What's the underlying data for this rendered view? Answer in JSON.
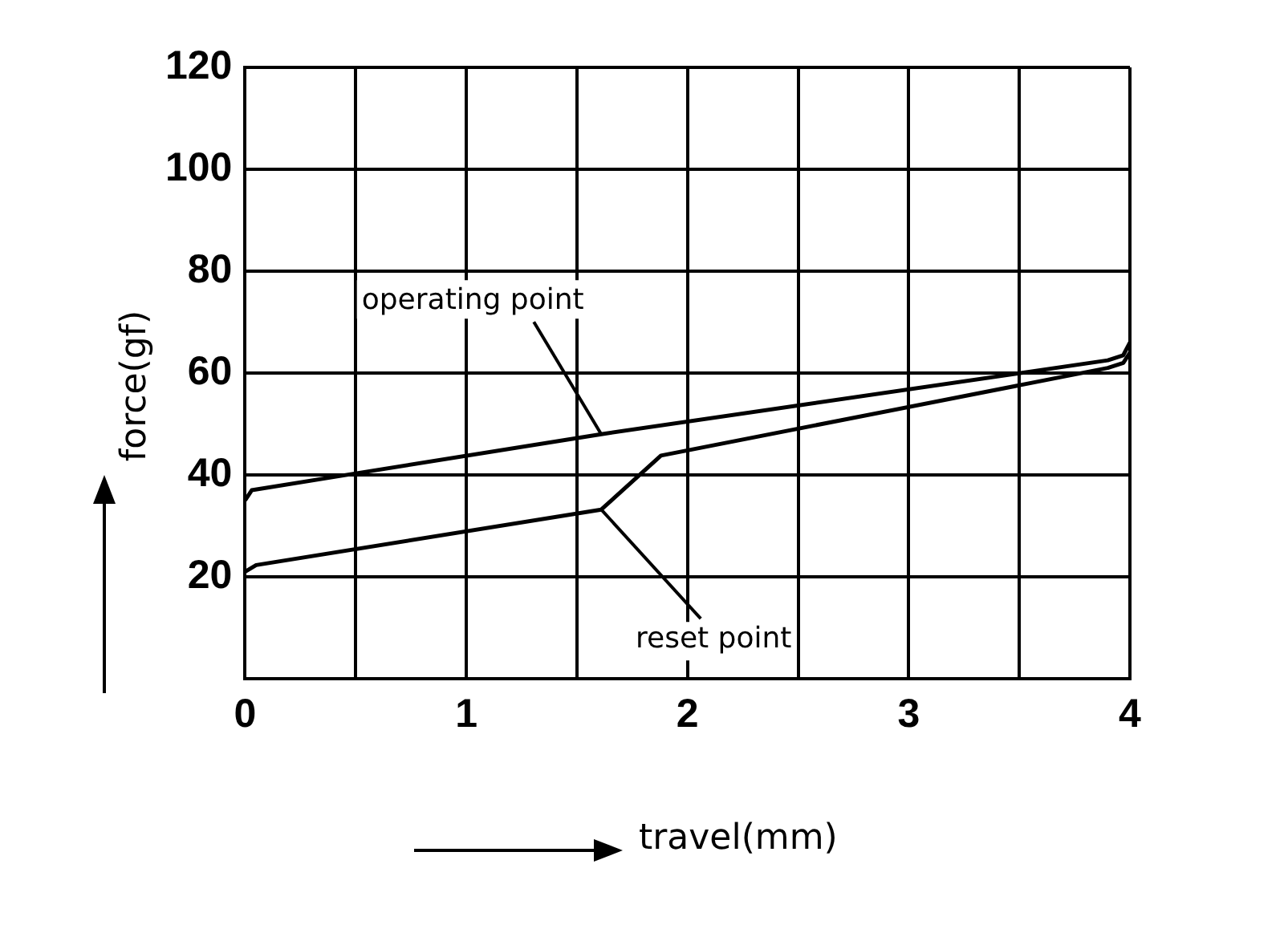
{
  "chart_data": {
    "type": "line",
    "xlabel": "travel(mm)",
    "ylabel": "force(gf)",
    "xlim": [
      0,
      4
    ],
    "xticks": [
      0,
      {
        "value": 0.5,
        "label": null
      },
      1,
      {
        "value": 1.5,
        "label": null
      },
      2,
      {
        "value": 2.5,
        "label": null
      },
      3,
      {
        "value": 3.5,
        "label": null
      },
      4
    ],
    "ylim": [
      0,
      120
    ],
    "yticks": [
      {
        "value": 0,
        "label": null
      },
      20,
      40,
      60,
      80,
      100,
      120
    ],
    "grid": true,
    "legend": false,
    "marker": "none",
    "line_style": "solid",
    "series": [
      {
        "color": "#000000",
        "x": [
          0,
          0.03,
          0.5,
          1.61,
          3.9,
          3.97,
          4
        ],
        "values": [
          35,
          37,
          40.3,
          48,
          62.5,
          63.5,
          66
        ]
      },
      {
        "color": "#000000",
        "x": [
          0,
          0.05,
          1.61,
          1.88,
          3.9,
          3.97,
          4
        ],
        "values": [
          21,
          22.3,
          33.2,
          43.8,
          61,
          62,
          64
        ]
      }
    ],
    "annotations": [
      {
        "text": "operating point",
        "x": 1.61,
        "y": 48
      },
      {
        "text": "reset point",
        "x": 1.61,
        "y": 33.2
      }
    ]
  }
}
